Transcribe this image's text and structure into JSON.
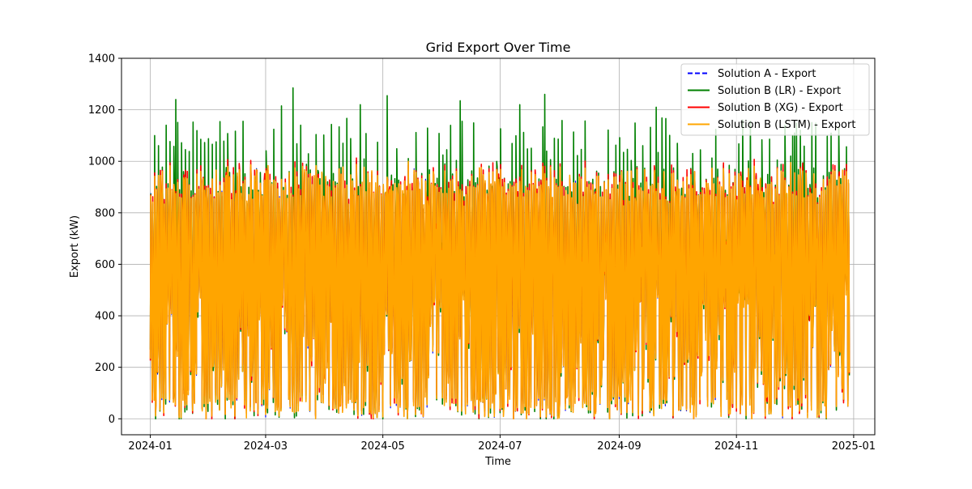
{
  "chart_data": {
    "type": "line",
    "title": "Grid Export Over Time",
    "xlabel": "Time",
    "ylabel": "Export (kW)",
    "grid": true,
    "legend_position": "upper right",
    "x_range": [
      "2023-12-17",
      "2025-01-12"
    ],
    "y_range": [
      -62,
      1400
    ],
    "x_ticks": [
      "2024-01",
      "2024-03",
      "2024-05",
      "2024-07",
      "2024-09",
      "2024-11",
      "2025-01"
    ],
    "y_ticks": [
      0,
      200,
      400,
      600,
      800,
      1000,
      1200,
      1400
    ],
    "data_start": "2024-01-01",
    "data_end": "2024-12-30",
    "series": [
      {
        "name": "Solution A - Export",
        "color": "#0000ff",
        "style": "dashed",
        "typical_range": [
          0,
          1000
        ],
        "note": "drawn under the other series"
      },
      {
        "name": "Solution B (LR) - Export",
        "color": "#008000",
        "style": "solid",
        "typical_range": [
          0,
          1020
        ],
        "peaks": [
          {
            "date": "2024-01-14",
            "value": 1240
          },
          {
            "date": "2024-01-31",
            "value": 1170
          },
          {
            "date": "2024-03-09",
            "value": 1215
          },
          {
            "date": "2024-03-15",
            "value": 1285
          },
          {
            "date": "2024-04-19",
            "value": 1220
          },
          {
            "date": "2024-05-03",
            "value": 1255
          },
          {
            "date": "2024-06-10",
            "value": 1235
          },
          {
            "date": "2024-07-24",
            "value": 1260
          },
          {
            "date": "2024-07-11",
            "value": 1220
          },
          {
            "date": "2024-09-20",
            "value": 1210
          },
          {
            "date": "2024-10-13",
            "value": 1200
          },
          {
            "date": "2024-12-01",
            "value": 1110
          }
        ]
      },
      {
        "name": "Solution B (XG) - Export",
        "color": "#ff0000",
        "style": "solid",
        "typical_range": [
          0,
          1040
        ]
      },
      {
        "name": "Solution B (LSTM) - Export",
        "color": "#ffa500",
        "style": "solid",
        "typical_range": [
          0,
          1010
        ]
      }
    ]
  }
}
